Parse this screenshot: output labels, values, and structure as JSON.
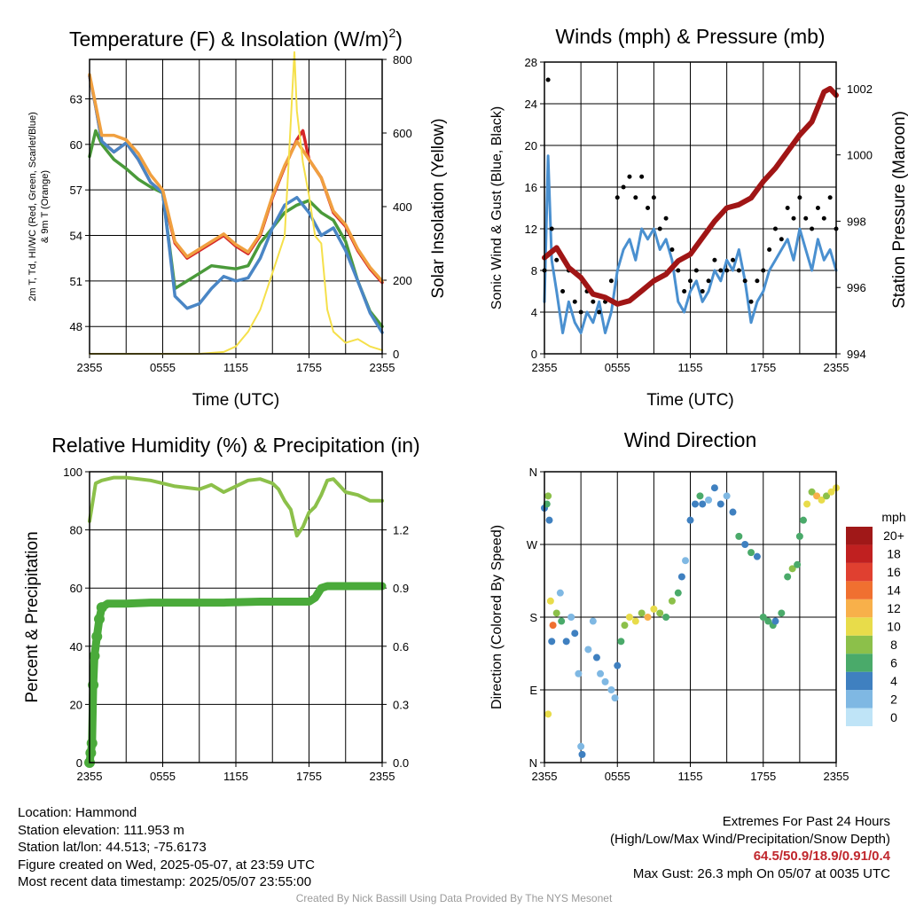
{
  "chart_data": [
    {
      "type": "line",
      "title": "Temperature (F) & Insolation (W/m²)",
      "xlabel": "Time (UTC)",
      "ylabel_left_line1": "2m T, Td, HI/WC (Red, Green, Scarlet/Blue)",
      "ylabel_left_line2": "& 9m T (Orange)",
      "ylabel_right": "Solar Insolation (Yellow)",
      "x_ticks": [
        "2355",
        "0555",
        "1155",
        "1755",
        "2355"
      ],
      "y_ticks": [
        "48",
        "51",
        "54",
        "57",
        "60",
        "63"
      ],
      "y2_ticks": [
        "0",
        "200",
        "400",
        "600",
        "800"
      ],
      "ylim": [
        46.2,
        65.6
      ],
      "y2lim": [
        0,
        800
      ],
      "series": [
        {
          "color": "#d62728",
          "x": [
            0,
            0.5,
            1,
            2,
            3,
            4,
            5,
            6,
            7,
            8,
            9,
            10,
            11,
            12,
            13,
            14,
            15,
            16,
            17,
            17.5,
            18,
            19,
            20,
            21,
            22,
            23,
            24
          ],
          "values": [
            64.5,
            62.5,
            60.2,
            59.5,
            60.1,
            59.0,
            57.5,
            56.8,
            53.5,
            52.5,
            53.0,
            53.5,
            54.0,
            53.3,
            52.8,
            54.0,
            56.5,
            58.5,
            60.3,
            60.9,
            59.0,
            57.8,
            55.5,
            54.6,
            53.0,
            51.8,
            50.9
          ]
        },
        {
          "color": "#4a9a3a",
          "x": [
            0,
            0.5,
            1,
            2,
            3,
            4,
            5,
            6,
            7,
            8,
            9,
            10,
            11,
            12,
            13,
            14,
            15,
            16,
            17,
            18,
            19,
            20,
            21,
            22,
            23,
            24
          ],
          "values": [
            59.2,
            60.9,
            60.0,
            59.0,
            58.4,
            57.7,
            57.2,
            56.8,
            50.5,
            51.0,
            51.5,
            52.0,
            51.9,
            51.8,
            52.0,
            53.5,
            54.5,
            55.5,
            56.0,
            56.3,
            55.5,
            55.0,
            53.6,
            51.0,
            49.0,
            48.0
          ]
        },
        {
          "color": "#4a86c5",
          "x": [
            0,
            0.5,
            1,
            2,
            3,
            4,
            5,
            6,
            6.5,
            7,
            8,
            9,
            10,
            11,
            12,
            13,
            14,
            15,
            16,
            17,
            18,
            19,
            20,
            21,
            22,
            23,
            24
          ],
          "values": [
            64.5,
            62.5,
            60.2,
            59.5,
            60.1,
            59.0,
            57.5,
            56.8,
            53.5,
            50.0,
            49.2,
            49.5,
            50.5,
            51.3,
            51.0,
            51.2,
            52.5,
            54.5,
            56.0,
            56.5,
            55.5,
            54.0,
            54.5,
            53.0,
            51.0,
            48.9,
            47.6
          ]
        },
        {
          "color": "#f0a040",
          "x": [
            0,
            0.5,
            1,
            2,
            3,
            4,
            5,
            6,
            7,
            8,
            9,
            10,
            11,
            12,
            13,
            14,
            15,
            16,
            17,
            18,
            19,
            20,
            21,
            22,
            23,
            24
          ],
          "values": [
            64.6,
            62.6,
            60.6,
            60.6,
            60.3,
            59.4,
            58.0,
            57.0,
            53.6,
            52.6,
            53.1,
            53.6,
            54.1,
            53.4,
            52.9,
            54.1,
            56.6,
            58.6,
            60.2,
            59.0,
            57.8,
            55.6,
            54.7,
            53.1,
            51.9,
            51.0
          ]
        },
        {
          "color": "#f5e04a",
          "axis": "y2",
          "x": [
            0,
            6,
            9,
            11,
            12,
            13,
            14,
            15,
            16,
            16.3,
            16.8,
            17,
            17.5,
            18,
            18.5,
            19,
            19.5,
            20,
            21,
            22,
            23,
            23.5,
            24
          ],
          "values": [
            0,
            0,
            0,
            5,
            20,
            60,
            120,
            220,
            320,
            500,
            820,
            660,
            520,
            430,
            320,
            300,
            120,
            60,
            30,
            40,
            20,
            15,
            10
          ]
        }
      ]
    },
    {
      "type": "line",
      "title": "Winds (mph) & Pressure (mb)",
      "xlabel": "Time (UTC)",
      "ylabel_left": "Sonic Wind & Gust (Blue, Black)",
      "ylabel_right": "Station Pressure (Maroon)",
      "x_ticks": [
        "2355",
        "0555",
        "1155",
        "1755",
        "2355"
      ],
      "y_ticks": [
        "0",
        "4",
        "8",
        "12",
        "16",
        "20",
        "24",
        "28"
      ],
      "y2_ticks": [
        "994",
        "996",
        "998",
        "1000",
        "1002"
      ],
      "ylim": [
        0,
        28
      ],
      "y2lim": [
        994,
        1002.8
      ],
      "series": [
        {
          "color": "#4a90d0",
          "x": [
            0,
            0.3,
            0.6,
            1,
            1.5,
            2,
            2.5,
            3,
            3.5,
            4,
            4.5,
            5,
            5.5,
            6,
            6.5,
            7,
            7.5,
            8,
            8.5,
            9,
            9.5,
            10,
            10.5,
            11,
            11.5,
            12,
            12.5,
            13,
            13.5,
            14,
            14.5,
            15,
            15.5,
            16,
            16.5,
            17,
            17.5,
            18,
            18.5,
            19,
            19.5,
            20,
            20.5,
            21,
            21.5,
            22,
            22.5,
            23,
            23.5,
            24
          ],
          "values": [
            5,
            19,
            9,
            6,
            2,
            5,
            3,
            2,
            4,
            3,
            5,
            2,
            4,
            8,
            10,
            11,
            9,
            12,
            11,
            12,
            10,
            11,
            9,
            5,
            4,
            6,
            7,
            5,
            6,
            8,
            7,
            9,
            8,
            10,
            7,
            3,
            5,
            6,
            8,
            9,
            10,
            11,
            9,
            12,
            10,
            8,
            11,
            9,
            10,
            8
          ]
        },
        {
          "color": "#000000",
          "marker": "dot",
          "x": [
            0,
            0.3,
            0.6,
            1,
            1.5,
            2,
            2.5,
            3,
            3.5,
            4,
            4.5,
            5,
            5.5,
            6,
            6.5,
            7,
            7.5,
            8,
            8.5,
            9,
            9.5,
            10,
            10.5,
            11,
            11.5,
            12,
            12.5,
            13,
            13.5,
            14,
            14.5,
            15,
            15.5,
            16,
            16.5,
            17,
            17.5,
            18,
            18.5,
            19,
            19.5,
            20,
            20.5,
            21,
            21.5,
            22,
            22.5,
            23,
            23.5,
            24
          ],
          "values": [
            8,
            26.3,
            12,
            9,
            6,
            8,
            5,
            4,
            6,
            5,
            4,
            5,
            7,
            15,
            16,
            17,
            15,
            17,
            14,
            15,
            12,
            13,
            10,
            8,
            6,
            7,
            8,
            6,
            7,
            9,
            8,
            8,
            9,
            8,
            7,
            5,
            7,
            8,
            10,
            12,
            11,
            14,
            13,
            15,
            13,
            12,
            14,
            13,
            15,
            12
          ]
        },
        {
          "color": "#a01515",
          "axis": "y2",
          "x": [
            0,
            1,
            2,
            3,
            4,
            5,
            6,
            7,
            8,
            9,
            10,
            11,
            12,
            13,
            14,
            15,
            16,
            17,
            18,
            19,
            20,
            21,
            22,
            23,
            23.5,
            24
          ],
          "values": [
            996.9,
            997.2,
            996.6,
            996.3,
            995.8,
            995.7,
            995.5,
            995.6,
            995.9,
            996.2,
            996.4,
            996.8,
            997.0,
            997.5,
            998.0,
            998.4,
            998.5,
            998.7,
            999.2,
            999.6,
            1000.1,
            1000.6,
            1001.0,
            1001.9,
            1002.0,
            1001.8
          ]
        }
      ]
    },
    {
      "type": "line",
      "title": "Relative Humidity (%) & Precipitation (in)",
      "ylabel_left": "Percent & Precipitation",
      "x_ticks": [
        "2355",
        "0555",
        "1155",
        "1755",
        "2355"
      ],
      "y_ticks": [
        "0",
        "20",
        "40",
        "60",
        "80",
        "100"
      ],
      "y2_ticks": [
        "0.0",
        "0.3",
        "0.6",
        "0.9",
        "1.2"
      ],
      "ylim": [
        0,
        100
      ],
      "y2lim": [
        0,
        1.5
      ],
      "series": [
        {
          "color": "#8cc04a",
          "x": [
            0,
            0.5,
            1,
            2,
            3,
            4,
            5,
            6,
            7,
            8,
            9,
            10,
            11,
            12,
            13,
            14,
            15,
            15.5,
            16,
            16.5,
            17,
            17.5,
            18,
            18.5,
            19,
            19.5,
            20,
            21,
            22,
            23,
            24
          ],
          "values": [
            83,
            96,
            97,
            98,
            98,
            97.5,
            97,
            96,
            95,
            94.5,
            94,
            95.5,
            93,
            95,
            97,
            97.5,
            96,
            94,
            90,
            87,
            78,
            81,
            86,
            88,
            92,
            97,
            97.5,
            93,
            92,
            90,
            90
          ]
        },
        {
          "color": "#4aaa3a",
          "axis": "y2",
          "x": [
            0,
            0.1,
            0.2,
            0.3,
            0.4,
            0.6,
            0.8,
            1,
            1.5,
            3,
            5,
            8,
            11,
            14,
            16,
            18,
            18.5,
            19,
            19.5,
            20,
            22,
            24
          ],
          "values": [
            0,
            0.05,
            0.1,
            0.4,
            0.55,
            0.65,
            0.74,
            0.8,
            0.82,
            0.82,
            0.825,
            0.825,
            0.825,
            0.83,
            0.83,
            0.83,
            0.85,
            0.9,
            0.91,
            0.91,
            0.91,
            0.91
          ]
        }
      ]
    },
    {
      "type": "scatter",
      "title": "Wind Direction",
      "ylabel_left": "Direction (Colored By Speed)",
      "x_ticks": [
        "2355",
        "0555",
        "1155",
        "1755",
        "2355"
      ],
      "y_ticks": [
        "N",
        "E",
        "S",
        "W",
        "N"
      ],
      "ylim": [
        0,
        360
      ],
      "colorbar": {
        "unit": "mph",
        "labels": [
          "0",
          "2",
          "4",
          "6",
          "8",
          "10",
          "12",
          "14",
          "16",
          "18",
          "20+"
        ],
        "colors": [
          "#bfe4f7",
          "#7fb8e3",
          "#3f80c0",
          "#4aaa6a",
          "#8cc04a",
          "#e8dc4a",
          "#f8b04a",
          "#f07030",
          "#e04030",
          "#c02020",
          "#a01818"
        ]
      },
      "points": [
        [
          0.0,
          315,
          5
        ],
        [
          0.2,
          320,
          6
        ],
        [
          0.3,
          330,
          8
        ],
        [
          0.4,
          300,
          4
        ],
        [
          0.5,
          200,
          11
        ],
        [
          0.7,
          170,
          15
        ],
        [
          0.3,
          60,
          10
        ],
        [
          0.6,
          150,
          4
        ],
        [
          1.0,
          185,
          8
        ],
        [
          1.3,
          210,
          2
        ],
        [
          1.4,
          175,
          6
        ],
        [
          1.8,
          150,
          4
        ],
        [
          2.2,
          180,
          3
        ],
        [
          2.5,
          160,
          5
        ],
        [
          2.8,
          110,
          3
        ],
        [
          3.0,
          20,
          2
        ],
        [
          3.1,
          10,
          4
        ],
        [
          3.6,
          140,
          2
        ],
        [
          4.0,
          175,
          3
        ],
        [
          4.3,
          130,
          4
        ],
        [
          4.6,
          110,
          2
        ],
        [
          5.0,
          100,
          3
        ],
        [
          5.5,
          90,
          2
        ],
        [
          5.8,
          80,
          2
        ],
        [
          6.0,
          120,
          4
        ],
        [
          6.3,
          150,
          7
        ],
        [
          6.6,
          170,
          9
        ],
        [
          7.0,
          180,
          10
        ],
        [
          7.5,
          175,
          11
        ],
        [
          8.0,
          185,
          9
        ],
        [
          8.5,
          180,
          12
        ],
        [
          9.0,
          190,
          10
        ],
        [
          9.5,
          185,
          8
        ],
        [
          10.0,
          180,
          7
        ],
        [
          10.5,
          200,
          8
        ],
        [
          11.0,
          210,
          6
        ],
        [
          11.3,
          230,
          4
        ],
        [
          11.6,
          250,
          3
        ],
        [
          12.0,
          300,
          4
        ],
        [
          12.4,
          320,
          5
        ],
        [
          12.8,
          330,
          6
        ],
        [
          13.0,
          320,
          4
        ],
        [
          13.5,
          325,
          3
        ],
        [
          14.0,
          340,
          4
        ],
        [
          14.5,
          320,
          5
        ],
        [
          15.0,
          330,
          3
        ],
        [
          15.5,
          310,
          4
        ],
        [
          16.0,
          280,
          6
        ],
        [
          16.5,
          270,
          5
        ],
        [
          17.0,
          260,
          6
        ],
        [
          17.5,
          255,
          5
        ],
        [
          18.0,
          180,
          6
        ],
        [
          18.4,
          175,
          7
        ],
        [
          18.8,
          170,
          6
        ],
        [
          19.0,
          175,
          5
        ],
        [
          19.5,
          185,
          6
        ],
        [
          20.0,
          230,
          7
        ],
        [
          20.4,
          240,
          8
        ],
        [
          20.8,
          245,
          6
        ],
        [
          21.0,
          280,
          7
        ],
        [
          21.3,
          300,
          6
        ],
        [
          21.6,
          320,
          10
        ],
        [
          22.0,
          335,
          9
        ],
        [
          22.4,
          330,
          13
        ],
        [
          22.8,
          325,
          11
        ],
        [
          23.2,
          330,
          9
        ],
        [
          23.6,
          335,
          10
        ],
        [
          24.0,
          340,
          10
        ]
      ]
    }
  ],
  "station": {
    "location": "Location: Hammond",
    "elevation": "Station elevation: 111.953 m",
    "latlon": "Station lat/lon: 44.513; -75.6173",
    "created": "Figure created on Wed, 2025-05-07, at 23:59 UTC",
    "recent": "Most recent data timestamp: 2025/05/07 23:55:00"
  },
  "extremes": {
    "title": "Extremes For Past 24 Hours",
    "subtitle": "(High/Low/Max Wind/Precipitation/Snow Depth)",
    "values": "64.5/50.9/18.9/0.91/0.4",
    "gust": "Max Gust: 26.3 mph On 05/07 at 0035 UTC"
  },
  "credit": "Created By Nick Bassill Using Data Provided By The NYS Mesonet"
}
